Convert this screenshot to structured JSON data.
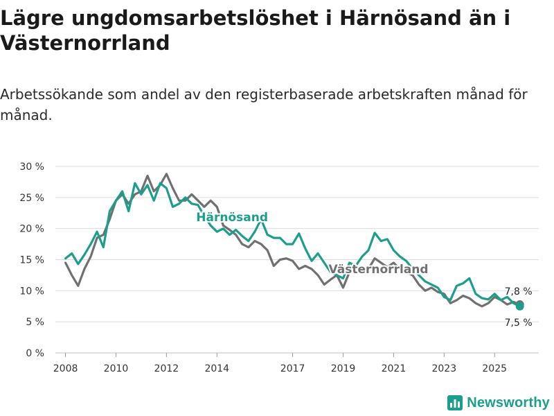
{
  "title": "Lägre ungdomsarbetslöshet i Härnösand än i Västernorrland",
  "subtitle": "Arbetssökande som andel av den registerbaserade arbetskraften månad för månad.",
  "brand": {
    "name": "Newsworthy",
    "color": "#1b9e8c"
  },
  "chart_data": {
    "type": "line",
    "title": "Lägre ungdomsarbetslöshet i Härnösand än i Västernorrland",
    "xlabel": "",
    "ylabel": "",
    "xlim": [
      2007.6,
      2026.75
    ],
    "ylim": [
      0,
      30
    ],
    "grid": true,
    "y_ticks": [
      0,
      5,
      10,
      15,
      20,
      25,
      30
    ],
    "y_tick_labels": [
      "0 %",
      "5 %",
      "10 %",
      "15 %",
      "20 %",
      "25 %",
      "30 %"
    ],
    "x_ticks": [
      2008,
      2010,
      2012,
      2014,
      2017,
      2019,
      2021,
      2023,
      2025
    ],
    "x_tick_labels": [
      "2008",
      "2010",
      "2012",
      "2014",
      "2017",
      "2019",
      "2021",
      "2023",
      "2025"
    ],
    "series": [
      {
        "name": "Härnösand",
        "color": "#1b9e8c",
        "label_at": [
          2014.6,
          21.2
        ],
        "end_label": "7,5 %",
        "points": [
          [
            2008.0,
            15.2
          ],
          [
            2008.25,
            16.0
          ],
          [
            2008.5,
            14.3
          ],
          [
            2008.75,
            15.8
          ],
          [
            2009.0,
            17.5
          ],
          [
            2009.25,
            19.5
          ],
          [
            2009.5,
            17.0
          ],
          [
            2009.75,
            22.8
          ],
          [
            2010.0,
            24.5
          ],
          [
            2010.25,
            26.0
          ],
          [
            2010.5,
            22.8
          ],
          [
            2010.75,
            27.3
          ],
          [
            2011.0,
            25.5
          ],
          [
            2011.25,
            27.0
          ],
          [
            2011.5,
            24.5
          ],
          [
            2011.75,
            27.3
          ],
          [
            2012.0,
            26.5
          ],
          [
            2012.25,
            23.5
          ],
          [
            2012.5,
            24.0
          ],
          [
            2012.75,
            25.0
          ],
          [
            2013.0,
            24.0
          ],
          [
            2013.25,
            23.8
          ],
          [
            2013.5,
            22.0
          ],
          [
            2013.75,
            20.5
          ],
          [
            2014.0,
            19.5
          ],
          [
            2014.25,
            20.0
          ],
          [
            2014.5,
            19.0
          ],
          [
            2014.75,
            19.8
          ],
          [
            2015.0,
            18.8
          ],
          [
            2015.25,
            18.0
          ],
          [
            2015.5,
            19.5
          ],
          [
            2015.75,
            21.5
          ],
          [
            2016.0,
            19.0
          ],
          [
            2016.25,
            18.5
          ],
          [
            2016.5,
            18.5
          ],
          [
            2016.75,
            17.5
          ],
          [
            2017.0,
            17.5
          ],
          [
            2017.25,
            19.2
          ],
          [
            2017.5,
            16.8
          ],
          [
            2017.75,
            14.8
          ],
          [
            2018.0,
            16.0
          ],
          [
            2018.25,
            14.5
          ],
          [
            2018.5,
            13.0
          ],
          [
            2018.75,
            12.5
          ],
          [
            2019.0,
            12.0
          ],
          [
            2019.25,
            14.5
          ],
          [
            2019.5,
            14.0
          ],
          [
            2019.75,
            15.5
          ],
          [
            2020.0,
            16.5
          ],
          [
            2020.25,
            19.3
          ],
          [
            2020.5,
            18.0
          ],
          [
            2020.75,
            18.3
          ],
          [
            2021.0,
            16.5
          ],
          [
            2021.25,
            15.5
          ],
          [
            2021.5,
            14.8
          ],
          [
            2021.75,
            13.5
          ],
          [
            2022.0,
            12.5
          ],
          [
            2022.25,
            11.5
          ],
          [
            2022.5,
            11.0
          ],
          [
            2022.75,
            10.5
          ],
          [
            2023.0,
            9.0
          ],
          [
            2023.25,
            8.5
          ],
          [
            2023.5,
            10.8
          ],
          [
            2023.75,
            11.2
          ],
          [
            2024.0,
            12.0
          ],
          [
            2024.25,
            9.5
          ],
          [
            2024.5,
            8.8
          ],
          [
            2024.75,
            8.6
          ],
          [
            2025.0,
            9.5
          ],
          [
            2025.25,
            8.5
          ],
          [
            2025.5,
            9.0
          ],
          [
            2025.75,
            8.0
          ],
          [
            2026.0,
            7.5
          ]
        ]
      },
      {
        "name": "Västernorrland",
        "color": "#707070",
        "label_at": [
          2020.4,
          12.8
        ],
        "end_label": "7,8 %",
        "points": [
          [
            2008.0,
            14.5
          ],
          [
            2008.25,
            12.5
          ],
          [
            2008.5,
            10.8
          ],
          [
            2008.75,
            13.5
          ],
          [
            2009.0,
            15.5
          ],
          [
            2009.25,
            18.5
          ],
          [
            2009.5,
            19.0
          ],
          [
            2009.75,
            21.5
          ],
          [
            2010.0,
            24.5
          ],
          [
            2010.25,
            25.5
          ],
          [
            2010.5,
            24.0
          ],
          [
            2010.75,
            25.5
          ],
          [
            2011.0,
            26.0
          ],
          [
            2011.25,
            28.5
          ],
          [
            2011.5,
            26.0
          ],
          [
            2011.75,
            27.0
          ],
          [
            2012.0,
            28.8
          ],
          [
            2012.25,
            26.5
          ],
          [
            2012.5,
            24.5
          ],
          [
            2012.75,
            24.5
          ],
          [
            2013.0,
            25.5
          ],
          [
            2013.25,
            24.5
          ],
          [
            2013.5,
            23.5
          ],
          [
            2013.75,
            24.5
          ],
          [
            2014.0,
            23.5
          ],
          [
            2014.25,
            20.5
          ],
          [
            2014.5,
            19.8
          ],
          [
            2014.75,
            19.0
          ],
          [
            2015.0,
            17.5
          ],
          [
            2015.25,
            17.0
          ],
          [
            2015.5,
            18.0
          ],
          [
            2015.75,
            17.5
          ],
          [
            2016.0,
            16.5
          ],
          [
            2016.25,
            14.0
          ],
          [
            2016.5,
            15.0
          ],
          [
            2016.75,
            15.2
          ],
          [
            2017.0,
            14.8
          ],
          [
            2017.25,
            13.5
          ],
          [
            2017.5,
            14.0
          ],
          [
            2017.75,
            13.5
          ],
          [
            2018.0,
            12.5
          ],
          [
            2018.25,
            11.0
          ],
          [
            2018.5,
            11.8
          ],
          [
            2018.75,
            12.5
          ],
          [
            2019.0,
            10.5
          ],
          [
            2019.25,
            13.0
          ],
          [
            2019.5,
            13.5
          ],
          [
            2019.75,
            13.5
          ],
          [
            2020.0,
            13.5
          ],
          [
            2020.25,
            15.2
          ],
          [
            2020.5,
            14.5
          ],
          [
            2020.75,
            13.8
          ],
          [
            2021.0,
            14.5
          ],
          [
            2021.25,
            13.5
          ],
          [
            2021.5,
            13.0
          ],
          [
            2021.75,
            12.5
          ],
          [
            2022.0,
            11.0
          ],
          [
            2022.25,
            10.0
          ],
          [
            2022.5,
            10.5
          ],
          [
            2022.75,
            9.8
          ],
          [
            2023.0,
            9.5
          ],
          [
            2023.25,
            8.0
          ],
          [
            2023.5,
            8.5
          ],
          [
            2023.75,
            9.2
          ],
          [
            2024.0,
            8.8
          ],
          [
            2024.25,
            8.0
          ],
          [
            2024.5,
            7.5
          ],
          [
            2024.75,
            8.0
          ],
          [
            2025.0,
            9.0
          ],
          [
            2025.25,
            8.5
          ],
          [
            2025.5,
            7.8
          ],
          [
            2025.75,
            8.2
          ],
          [
            2026.0,
            7.8
          ]
        ]
      }
    ]
  }
}
